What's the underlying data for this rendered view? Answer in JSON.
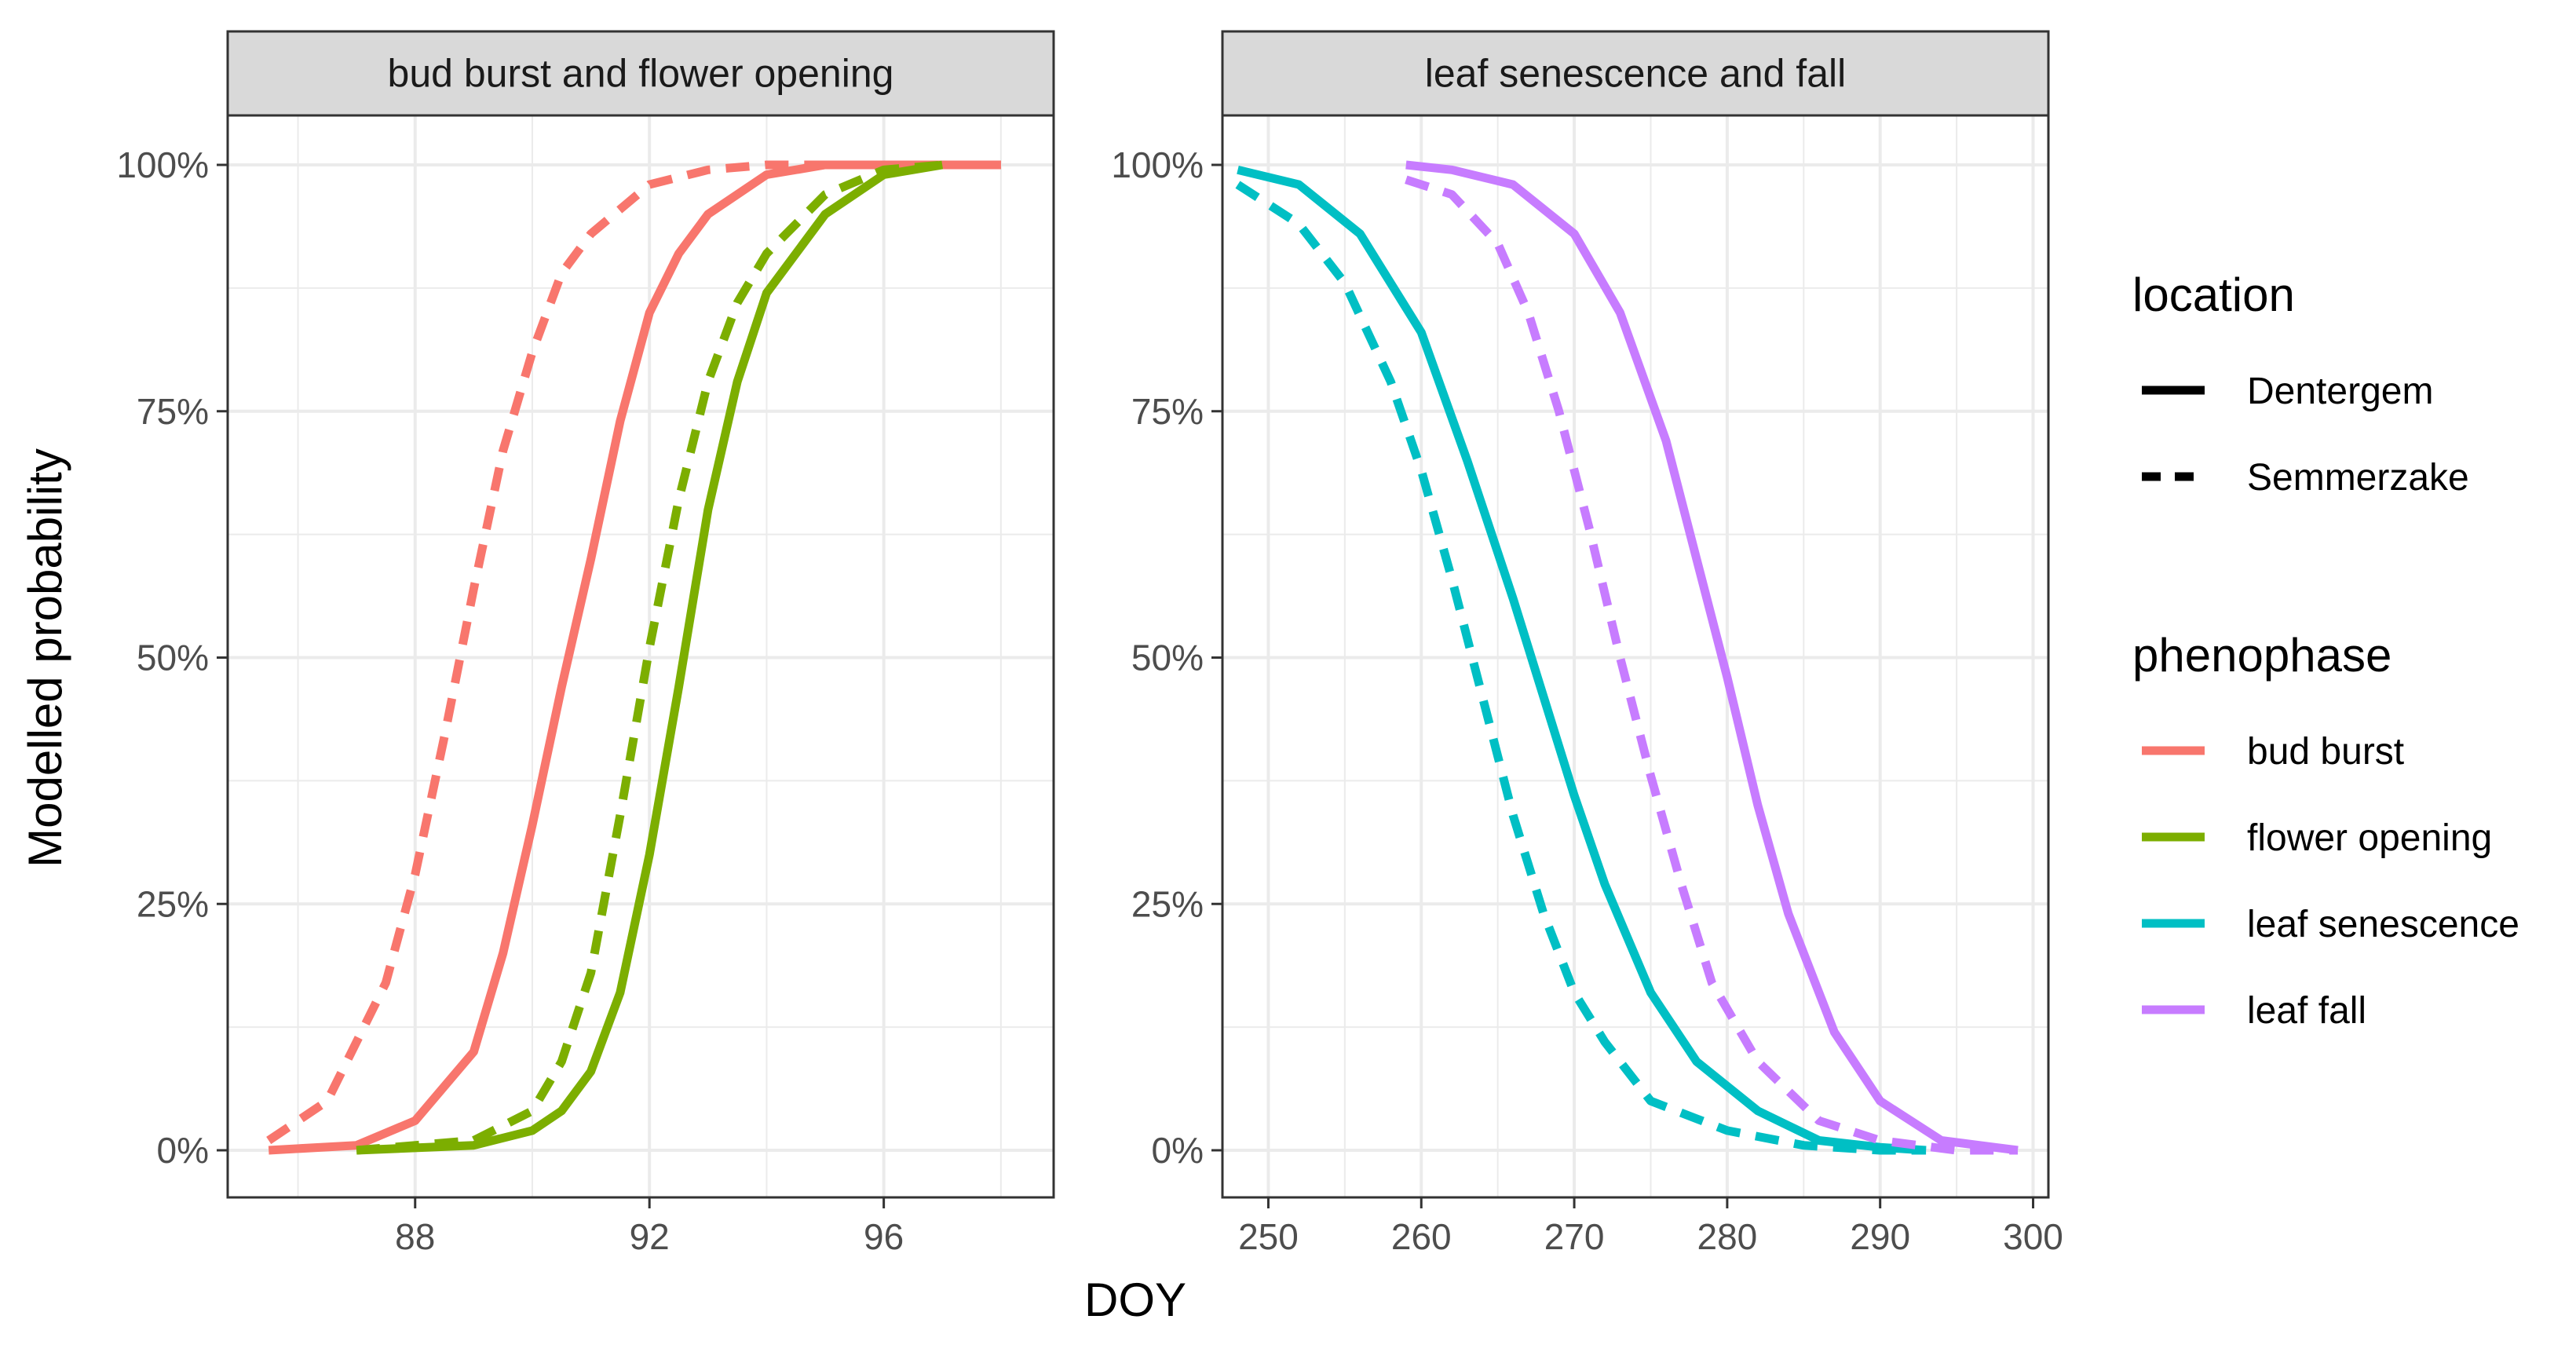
{
  "chart_data": {
    "type": "line",
    "ylabel": "Modelled probability",
    "xlabel": "DOY",
    "y_ticks": [
      {
        "v": 0,
        "label": "0%"
      },
      {
        "v": 0.25,
        "label": "25%"
      },
      {
        "v": 0.5,
        "label": "50%"
      },
      {
        "v": 0.75,
        "label": "75%"
      },
      {
        "v": 1.0,
        "label": "100%"
      }
    ],
    "ylim": [
      -0.05,
      1.05
    ],
    "facets": [
      {
        "title": "bud burst and flower opening",
        "xlim": [
          84.8,
          98.9
        ],
        "x_ticks": [
          {
            "v": 88,
            "label": "88"
          },
          {
            "v": 92,
            "label": "92"
          },
          {
            "v": 96,
            "label": "96"
          }
        ],
        "series": [
          {
            "phenophase": "bud burst",
            "location": "Semmerzake",
            "direction": "increasing",
            "x": [
              85.5,
              86.5,
              87.5,
              88.0,
              88.5,
              89.0,
              89.5,
              90.0,
              90.5,
              91.0,
              92.0,
              93.0,
              94.0,
              95.0,
              96.5,
              98.0
            ],
            "y": [
              0.01,
              0.05,
              0.17,
              0.28,
              0.42,
              0.57,
              0.71,
              0.81,
              0.89,
              0.93,
              0.98,
              0.995,
              1.0,
              1.0,
              1.0,
              1.0
            ]
          },
          {
            "phenophase": "bud burst",
            "location": "Dentergem",
            "direction": "increasing",
            "x": [
              85.5,
              87.0,
              88.0,
              89.0,
              89.5,
              90.0,
              90.5,
              91.0,
              91.5,
              92.0,
              92.5,
              93.0,
              94.0,
              95.0,
              96.0,
              98.0
            ],
            "y": [
              0.0,
              0.005,
              0.03,
              0.1,
              0.2,
              0.33,
              0.47,
              0.6,
              0.74,
              0.85,
              0.91,
              0.95,
              0.99,
              1.0,
              1.0,
              1.0
            ]
          },
          {
            "phenophase": "flower opening",
            "location": "Semmerzake",
            "direction": "increasing",
            "x": [
              87.0,
              89.0,
              90.0,
              90.5,
              91.0,
              91.5,
              92.0,
              92.5,
              93.0,
              93.5,
              94.0,
              95.0,
              96.0,
              97.0
            ],
            "y": [
              0.0,
              0.01,
              0.04,
              0.09,
              0.18,
              0.34,
              0.51,
              0.66,
              0.78,
              0.86,
              0.91,
              0.97,
              0.995,
              1.0
            ]
          },
          {
            "phenophase": "flower opening",
            "location": "Dentergem",
            "direction": "increasing",
            "x": [
              87.0,
              89.0,
              90.0,
              90.5,
              91.0,
              91.5,
              92.0,
              92.5,
              93.0,
              93.5,
              94.0,
              95.0,
              96.0,
              97.0
            ],
            "y": [
              0.0,
              0.005,
              0.02,
              0.04,
              0.08,
              0.16,
              0.3,
              0.47,
              0.65,
              0.78,
              0.87,
              0.95,
              0.99,
              1.0
            ]
          }
        ]
      },
      {
        "title": "leaf senescence and fall",
        "xlim": [
          247.0,
          301.0
        ],
        "x_ticks": [
          {
            "v": 250,
            "label": "250"
          },
          {
            "v": 260,
            "label": "260"
          },
          {
            "v": 270,
            "label": "270"
          },
          {
            "v": 280,
            "label": "280"
          },
          {
            "v": 290,
            "label": "290"
          },
          {
            "v": 300,
            "label": "300"
          }
        ],
        "series": [
          {
            "phenophase": "leaf senescence",
            "location": "Semmerzake",
            "direction": "decreasing",
            "x": [
              248,
              252,
              255,
              258,
              260,
              262,
              264,
              266,
              268,
              270,
              272,
              275,
              280,
              285,
              290,
              293
            ],
            "y": [
              0.98,
              0.94,
              0.88,
              0.78,
              0.69,
              0.58,
              0.46,
              0.34,
              0.24,
              0.16,
              0.11,
              0.05,
              0.02,
              0.005,
              0.0,
              0.0
            ]
          },
          {
            "phenophase": "leaf senescence",
            "location": "Dentergem",
            "direction": "decreasing",
            "x": [
              248,
              252,
              256,
              260,
              263,
              266,
              268,
              270,
              272,
              275,
              278,
              282,
              286,
              290,
              293
            ],
            "y": [
              0.995,
              0.98,
              0.93,
              0.83,
              0.7,
              0.56,
              0.46,
              0.36,
              0.27,
              0.16,
              0.09,
              0.04,
              0.01,
              0.003,
              0.0
            ]
          },
          {
            "phenophase": "leaf fall",
            "location": "Semmerzake",
            "direction": "decreasing",
            "x": [
              259,
              262,
              265,
              267,
              269,
              271,
              273,
              275,
              277,
              279,
              282,
              286,
              290,
              295,
              299
            ],
            "y": [
              0.985,
              0.97,
              0.92,
              0.85,
              0.75,
              0.63,
              0.5,
              0.38,
              0.27,
              0.17,
              0.09,
              0.03,
              0.01,
              0.0,
              0.0
            ]
          },
          {
            "phenophase": "leaf fall",
            "location": "Dentergem",
            "direction": "decreasing",
            "x": [
              259,
              262,
              266,
              270,
              273,
              276,
              278,
              280,
              282,
              284,
              287,
              290,
              294,
              299
            ],
            "y": [
              1.0,
              0.995,
              0.98,
              0.93,
              0.85,
              0.72,
              0.6,
              0.48,
              0.35,
              0.24,
              0.12,
              0.05,
              0.01,
              0.0
            ]
          }
        ]
      }
    ],
    "legend": {
      "placement": "right",
      "location": {
        "title": "location",
        "entries": [
          {
            "label": "Dentergem",
            "linetype": "solid"
          },
          {
            "label": "Semmerzake",
            "linetype": "dashed"
          }
        ]
      },
      "phenophase": {
        "title": "phenophase",
        "entries": [
          {
            "label": "bud burst",
            "color": "#F8766D"
          },
          {
            "label": "flower opening",
            "color": "#7CAE00"
          },
          {
            "label": "leaf senescence",
            "color": "#00BFC4"
          },
          {
            "label": "leaf fall",
            "color": "#C77CFF"
          }
        ]
      }
    }
  },
  "colors": {
    "bud burst": "#F8766D",
    "flower opening": "#7CAE00",
    "leaf senescence": "#00BFC4",
    "leaf fall": "#C77CFF",
    "strip_fill": "#d9d9d9",
    "grid": "#ebebeb"
  }
}
